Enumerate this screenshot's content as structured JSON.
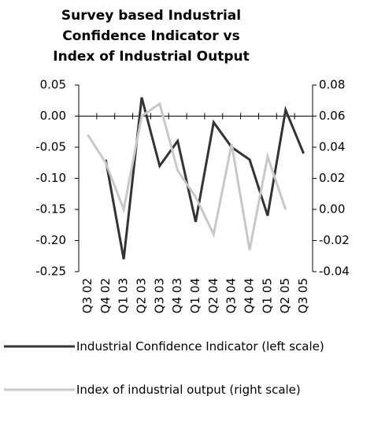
{
  "chart_data": {
    "type": "line",
    "title": [
      "Survey based Industrial",
      "Confidence Indicator vs",
      "Index of Industrial Output"
    ],
    "categories": [
      "Q3 02",
      "Q4 02",
      "Q1 03",
      "Q2 03",
      "Q3 03",
      "Q4 03",
      "Q1 04",
      "Q2 04",
      "Q3 04",
      "Q4 04",
      "Q1 05",
      "Q2 05",
      "Q3 05"
    ],
    "series": [
      {
        "name": "Industrial Confidence Indicator (left scale)",
        "color": "#333333",
        "axis": "y",
        "values": [
          null,
          -0.07,
          -0.23,
          0.03,
          -0.08,
          -0.04,
          -0.17,
          -0.01,
          -0.05,
          -0.07,
          -0.16,
          0.01,
          -0.06
        ]
      },
      {
        "name": "Index of industrial output (right scale)",
        "color": "#c8c8c8",
        "axis": "y2",
        "values": [
          0.048,
          0.03,
          0.0,
          0.06,
          0.068,
          0.025,
          0.008,
          -0.016,
          0.042,
          -0.026,
          0.034,
          0.0,
          null
        ]
      }
    ],
    "ylim": [
      -0.25,
      0.05
    ],
    "yticks": [
      {
        "value": -0.25,
        "label": "-0.25"
      },
      {
        "value": -0.2,
        "label": "-0.20"
      },
      {
        "value": -0.15,
        "label": "-0.15"
      },
      {
        "value": -0.1,
        "label": "-0.10"
      },
      {
        "value": -0.05,
        "label": "-0.05"
      },
      {
        "value": 0,
        "label": "0.00"
      },
      {
        "value": 0.05,
        "label": "0.05"
      }
    ],
    "y2lim": [
      -0.04,
      0.08
    ],
    "y2ticks": [
      {
        "value": -0.04,
        "label": "-0.04"
      },
      {
        "value": -0.02,
        "label": "-0.02"
      },
      {
        "value": 0,
        "label": "0.00"
      },
      {
        "value": 0.02,
        "label": "0.02"
      },
      {
        "value": 0.04,
        "label": "0.04"
      },
      {
        "value": 0.06,
        "label": "0.06"
      },
      {
        "value": 0.08,
        "label": "0.08"
      }
    ]
  }
}
